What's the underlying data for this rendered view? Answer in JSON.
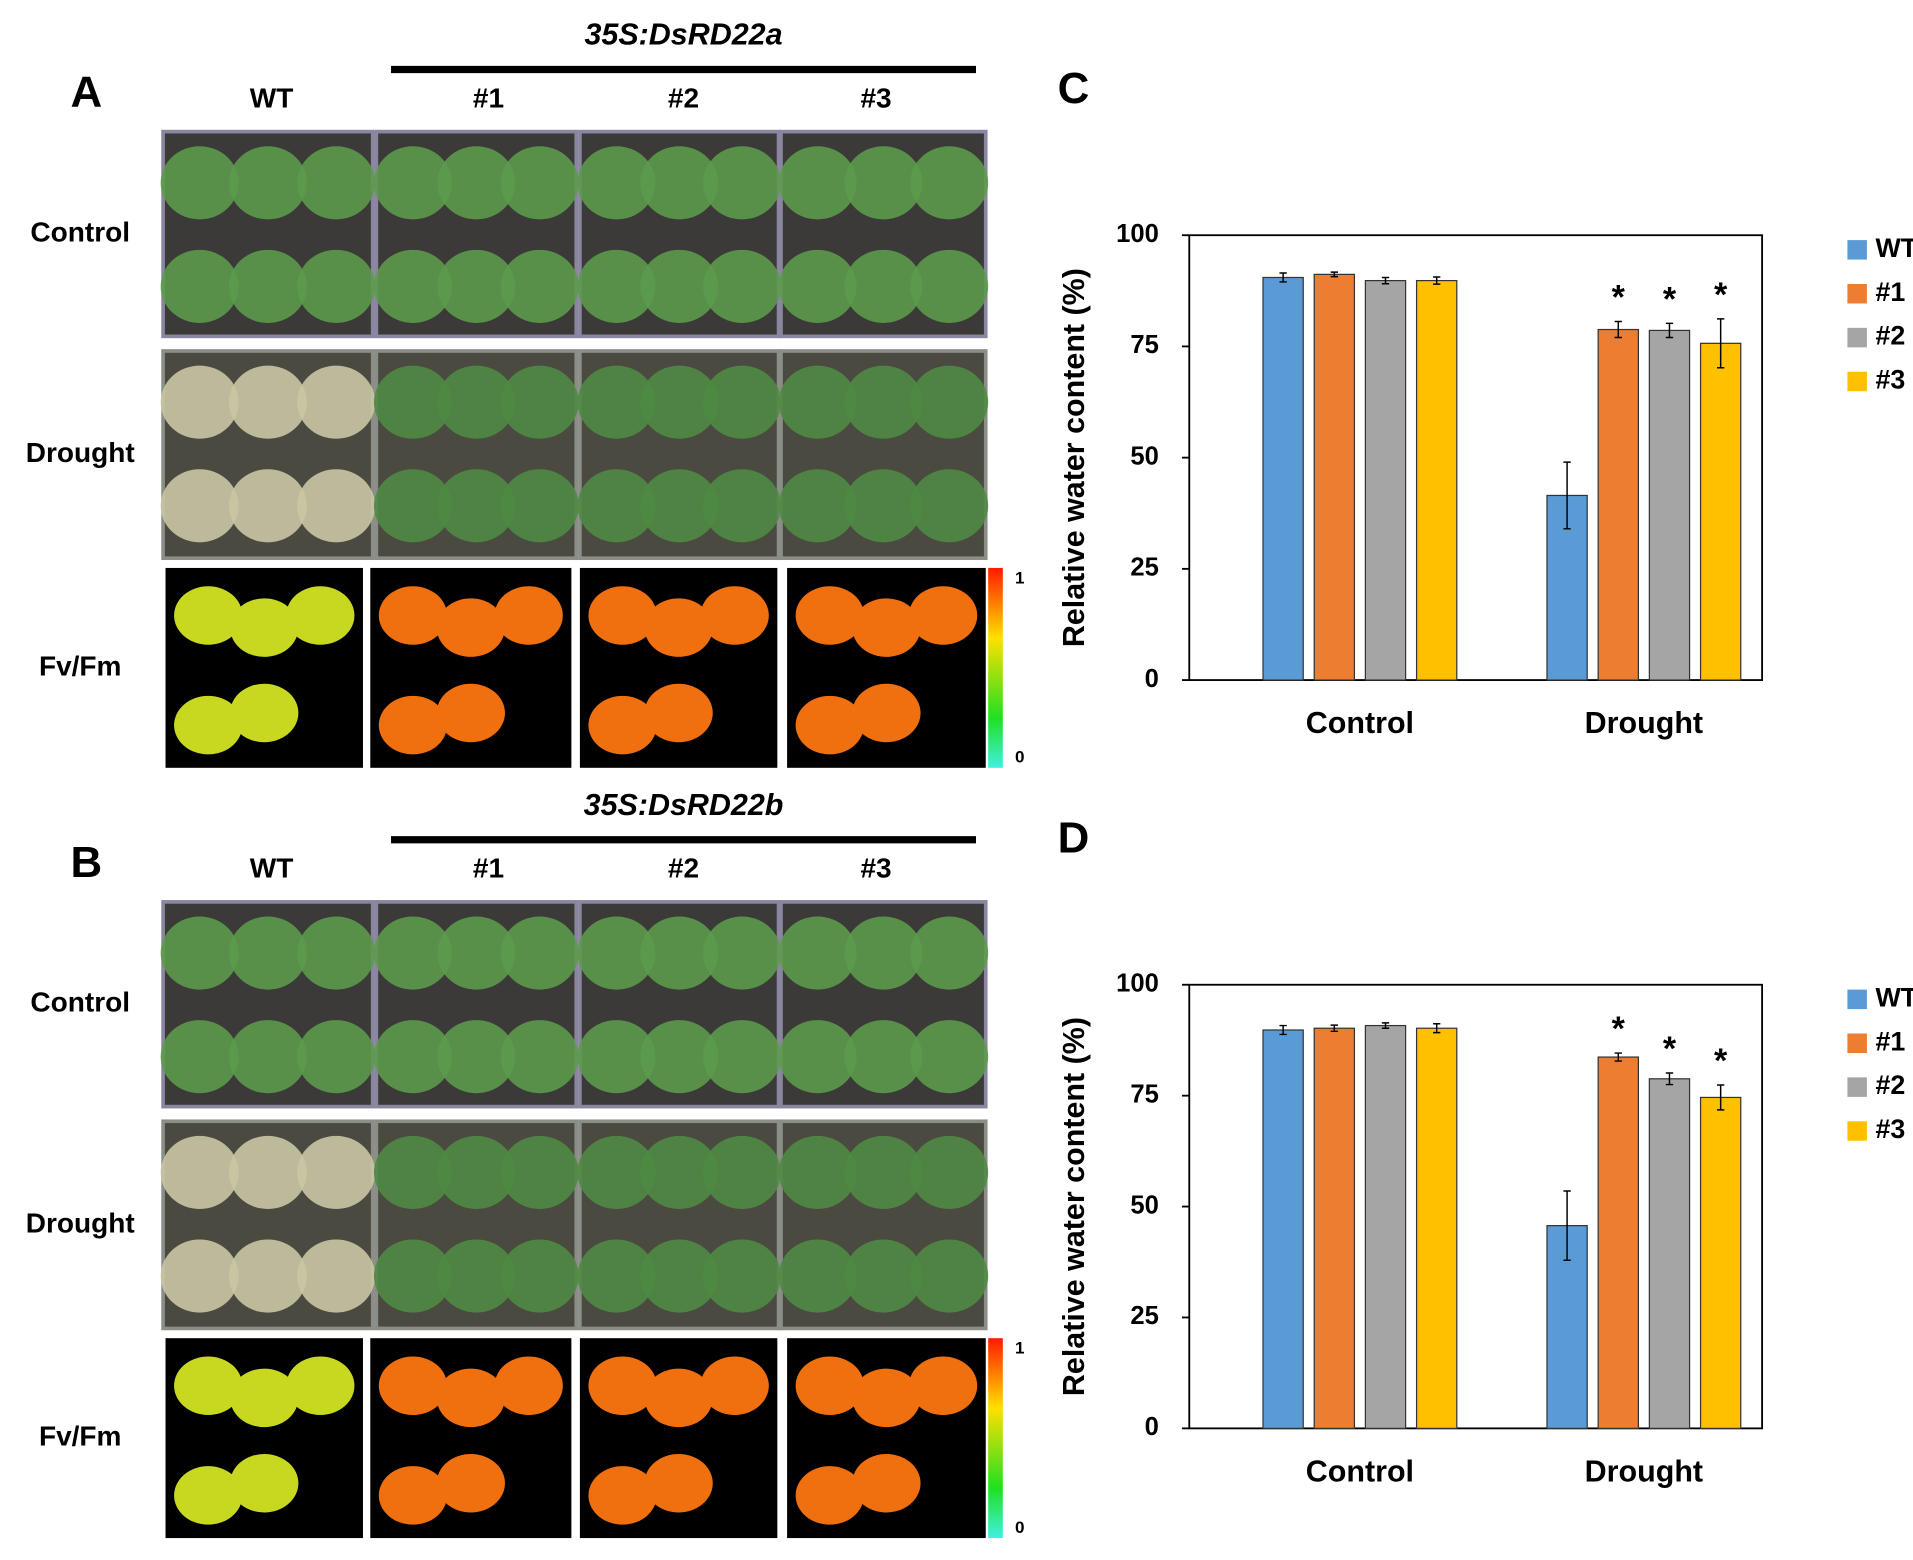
{
  "photo_panels": [
    {
      "panel": "A",
      "construct": "35S:DsRD22a",
      "columns": [
        "WT",
        "#1",
        "#2",
        "#3"
      ],
      "rows": [
        "Control",
        "Drought",
        "Fv/Fm"
      ],
      "colorbar": {
        "max": 1,
        "min": 0
      }
    },
    {
      "panel": "B",
      "construct": "35S:DsRD22b",
      "columns": [
        "WT",
        "#1",
        "#2",
        "#3"
      ],
      "rows": [
        "Control",
        "Drought",
        "Fv/Fm"
      ],
      "colorbar": {
        "max": 1,
        "min": 0
      }
    }
  ],
  "chart_data": [
    {
      "type": "bar",
      "panel": "C",
      "ylabel": "Relative water content (%)",
      "categories": [
        "Control",
        "Drought"
      ],
      "ylim": [
        0,
        100
      ],
      "yticks": [
        0,
        25,
        50,
        75,
        100
      ],
      "series": [
        {
          "name": "WT",
          "color": "#5b9bd5",
          "values": [
            90.5,
            41.5
          ],
          "errors": [
            1,
            7.5
          ],
          "markers": [
            null,
            null
          ]
        },
        {
          "name": "#1",
          "color": "#ed7d31",
          "values": [
            91.2,
            78.8
          ],
          "errors": [
            0.5,
            1.8
          ],
          "markers": [
            null,
            "*"
          ]
        },
        {
          "name": "#2",
          "color": "#a5a5a5",
          "values": [
            89.8,
            78.6
          ],
          "errors": [
            0.7,
            1.6
          ],
          "markers": [
            null,
            "*"
          ]
        },
        {
          "name": "#3",
          "color": "#ffc000",
          "values": [
            89.8,
            75.7
          ],
          "errors": [
            0.8,
            5.5
          ],
          "markers": [
            null,
            "*"
          ]
        }
      ]
    },
    {
      "type": "bar",
      "panel": "D",
      "ylabel": "Relative water content (%)",
      "categories": [
        "Control",
        "Drought"
      ],
      "ylim": [
        0,
        100
      ],
      "yticks": [
        0,
        25,
        50,
        75,
        100
      ],
      "series": [
        {
          "name": "WT",
          "color": "#5b9bd5",
          "values": [
            89.8,
            45.7
          ],
          "errors": [
            1,
            7.8
          ],
          "markers": [
            null,
            null
          ]
        },
        {
          "name": "#1",
          "color": "#ed7d31",
          "values": [
            90.2,
            83.7
          ],
          "errors": [
            0.7,
            0.9
          ],
          "markers": [
            null,
            "*"
          ]
        },
        {
          "name": "#2",
          "color": "#a5a5a5",
          "values": [
            90.8,
            78.8
          ],
          "errors": [
            0.6,
            1.3
          ],
          "markers": [
            null,
            "*"
          ]
        },
        {
          "name": "#3",
          "color": "#ffc000",
          "values": [
            90.2,
            74.6
          ],
          "errors": [
            1,
            2.8
          ],
          "markers": [
            null,
            "*"
          ]
        }
      ]
    }
  ]
}
